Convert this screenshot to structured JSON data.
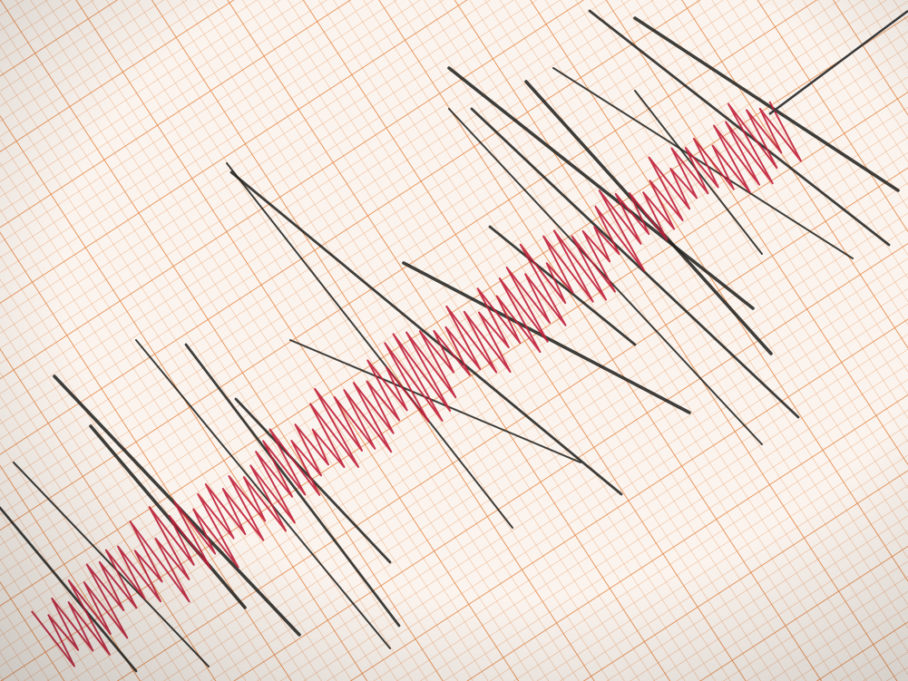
{
  "colors": {
    "paper": "#fbf4ee",
    "grid_minor": "#f0b48a",
    "grid_major": "#e58a4a",
    "trace_black": "#1f1f1c",
    "trace_red": "#c0203a",
    "stylus": "#3a3a3a"
  },
  "icons": [
    "seismograph-paper",
    "seismic-trace",
    "stylus-needle"
  ]
}
